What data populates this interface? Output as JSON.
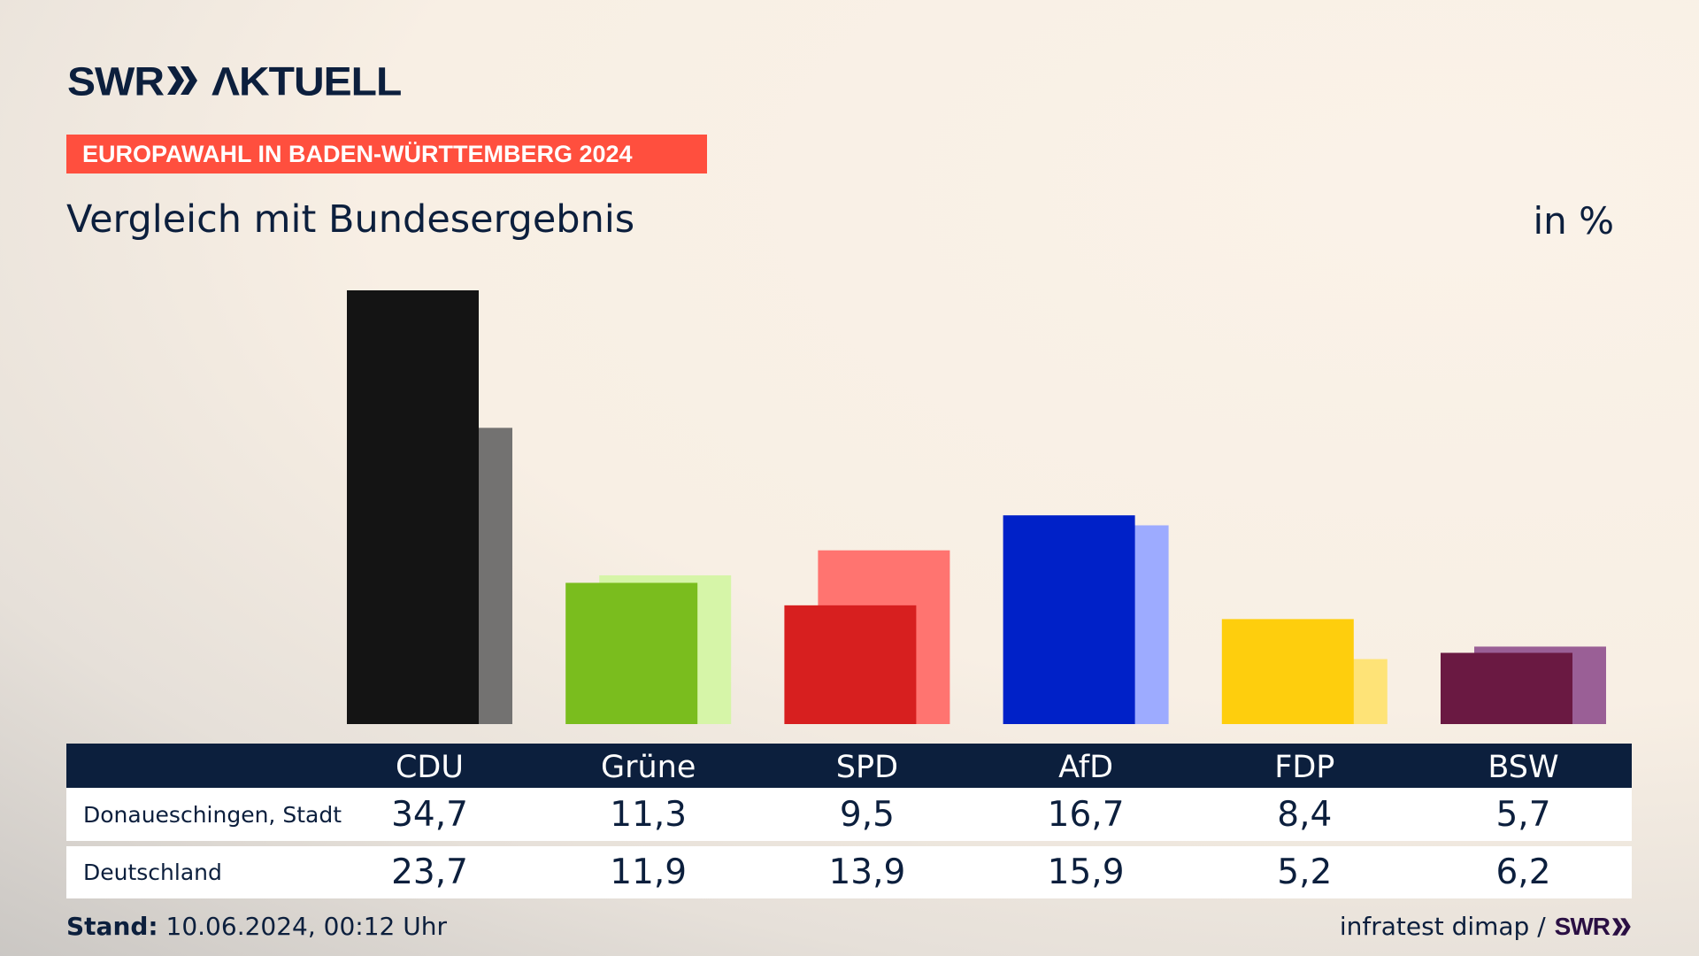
{
  "brand": {
    "logo_swr": "SWR",
    "logo_aktuell": "ΛKTUELL",
    "logo_color": "#0c1f3d"
  },
  "banner": {
    "text": "EUROPAWAHL IN BADEN-WÜRTTEMBERG 2024",
    "color": "#ff4f3e"
  },
  "header": {
    "title": "Vergleich mit Bundesergebnis",
    "unit": "in %"
  },
  "footer": {
    "stand_label": "Stand:",
    "stand_value": "10.06.2024, 00:12 Uhr",
    "source": "infratest dimap /",
    "source_logo": "SWR"
  },
  "chart_data": {
    "type": "bar",
    "title": "Vergleich mit Bundesergebnis",
    "ylabel": "in %",
    "ylim": [
      0,
      34.7
    ],
    "grid": false,
    "legend": "table-below",
    "categories": [
      "CDU",
      "Grüne",
      "SPD",
      "AfD",
      "FDP",
      "BSW"
    ],
    "series": [
      {
        "name": "Donaueschingen, Stadt",
        "values": [
          34.7,
          11.3,
          9.5,
          16.7,
          8.4,
          5.7
        ],
        "labels": [
          "34,7",
          "11,3",
          "9,5",
          "16,7",
          "8,4",
          "5,7"
        ],
        "colors": [
          "#141414",
          "#7abd1e",
          "#d71f1f",
          "#0021c8",
          "#fece0d",
          "#6a1942"
        ]
      },
      {
        "name": "Deutschland",
        "values": [
          23.7,
          11.9,
          13.9,
          15.9,
          5.2,
          6.2
        ],
        "labels": [
          "23,7",
          "11,9",
          "13,9",
          "15,9",
          "5,2",
          "6,2"
        ],
        "colors": [
          "#737271",
          "#d6f5a8",
          "#ff7470",
          "#9dabff",
          "#fee377",
          "#9a5f96"
        ]
      }
    ]
  }
}
